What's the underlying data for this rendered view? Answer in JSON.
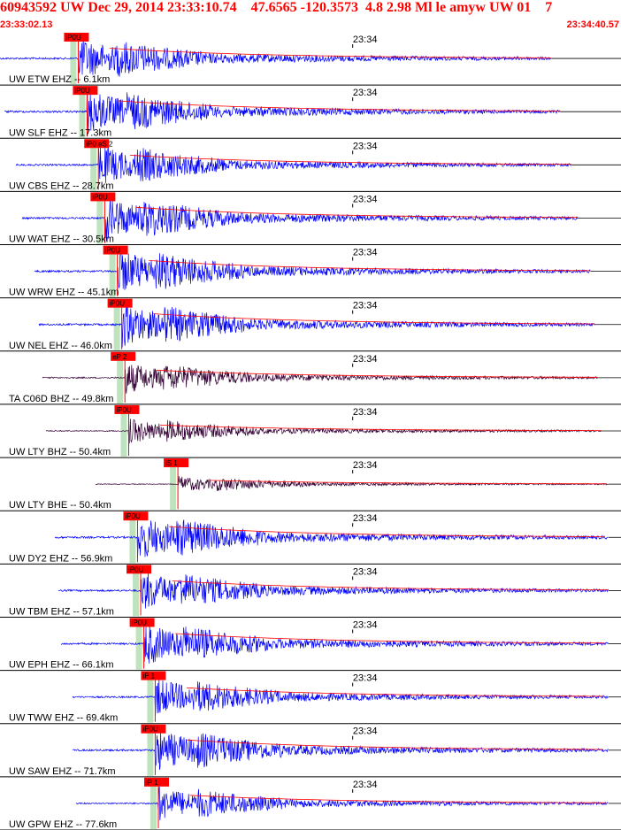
{
  "header": {
    "title": "60943592 UW Dec 29, 2014 23:33:10.74    47.6565 -120.3573  4.8 2.98 Ml le amyw UW 01    7",
    "start_time": "23:33:02.13",
    "end_time": "23:34:40.57"
  },
  "colors": {
    "trace_blue": "#0000ff",
    "trace_dark": "#330033",
    "pick_red": "#ff0000",
    "window_green": "#bfe3bf",
    "grid_black": "#000000"
  },
  "chart_data": {
    "type": "line",
    "title": "60943592 UW Dec 29, 2014 23:33:10.74    47.6565 -120.3573  4.8 2.98 Ml le amyw UW 01    7",
    "time_range": [
      "23:33:02.13",
      "23:34:40.57"
    ],
    "minute_tick": "23:34",
    "channels": [
      {
        "label": "UW ETW EHZ -- 6.1km",
        "pick": "iP0U",
        "arrival_s": 12.4,
        "amp": 0.95,
        "color": "#0000ff",
        "sticks_at_s": [
          28,
          35,
          40
        ]
      },
      {
        "label": "UW SLF EHZ -- 17.3km",
        "pick": "iP0U",
        "arrival_s": 13.8,
        "amp": 1.0,
        "color": "#0000ff"
      },
      {
        "label": "UW CBS EHZ -- 28.7km",
        "pick": "iP0 eS 2",
        "arrival_s": 15.6,
        "amp": 0.9,
        "color": "#0000ff"
      },
      {
        "label": "UW WAT EHZ -- 30.5km",
        "pick": "iP0U",
        "arrival_s": 16.6,
        "amp": 1.0,
        "color": "#0000ff"
      },
      {
        "label": "UW WRW EHZ -- 45.1km",
        "pick": "iP0U",
        "arrival_s": 18.6,
        "amp": 1.0,
        "color": "#0000ff"
      },
      {
        "label": "UW NEL EHZ -- 46.0km",
        "pick": "iP0U",
        "arrival_s": 19.3,
        "amp": 1.0,
        "color": "#0000ff"
      },
      {
        "label": "TA C06D BHZ -- 49.8km",
        "pick": "eP 2",
        "arrival_s": 19.8,
        "amp": 0.7,
        "color": "#330033"
      },
      {
        "label": "UW LTY BHZ -- 50.4km",
        "pick": "iP0U",
        "arrival_s": 20.4,
        "amp": 0.55,
        "color": "#330033"
      },
      {
        "label": "UW LTY BHE -- 50.4km",
        "pick": "iS 1",
        "arrival_s": 28.2,
        "amp": 0.35,
        "color": "#330033"
      },
      {
        "label": "UW DY2 EHZ -- 56.9km",
        "pick": "iP0U",
        "arrival_s": 21.8,
        "amp": 1.0,
        "color": "#0000ff"
      },
      {
        "label": "UW TBM EHZ -- 57.1km",
        "pick": "iP0U",
        "arrival_s": 22.3,
        "amp": 0.9,
        "color": "#0000ff"
      },
      {
        "label": "UW EPH EHZ -- 66.1km",
        "pick": "iP0U",
        "arrival_s": 22.8,
        "amp": 0.95,
        "color": "#0000ff"
      },
      {
        "label": "UW TWW EHZ -- 69.4km",
        "pick": "iP 1",
        "arrival_s": 24.6,
        "amp": 0.85,
        "color": "#0000ff"
      },
      {
        "label": "UW SAW EHZ -- 71.7km",
        "pick": "iP0U",
        "arrival_s": 24.6,
        "amp": 0.95,
        "color": "#0000ff"
      },
      {
        "label": "UW GPW EHZ -- 77.6km",
        "pick": "iP 1",
        "arrival_s": 25.1,
        "amp": 0.75,
        "color": "#0000ff"
      }
    ]
  }
}
